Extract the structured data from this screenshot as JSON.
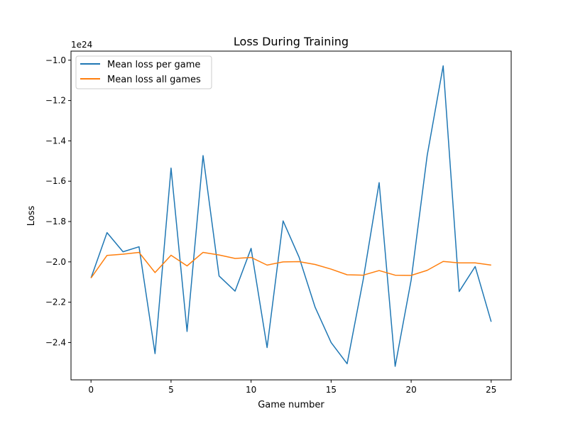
{
  "chart_data": {
    "type": "line",
    "title": "Loss During Training",
    "xlabel": "Game number",
    "ylabel": "Loss",
    "y_offset_label": "1e24",
    "xlim": [
      -1.25,
      26.25
    ],
    "ylim": [
      -2.585,
      -0.955
    ],
    "xticks": [
      0,
      5,
      10,
      15,
      20,
      25
    ],
    "xtick_labels": [
      "0",
      "5",
      "10",
      "15",
      "20",
      "25"
    ],
    "yticks": [
      -2.4,
      -2.2,
      -2.0,
      -1.8,
      -1.6,
      -1.4,
      -1.2,
      -1.0
    ],
    "ytick_labels": [
      "−2.4",
      "−2.2",
      "−2.0",
      "−1.8",
      "−1.6",
      "−1.4",
      "−1.2",
      "−1.0"
    ],
    "grid": false,
    "legend_position": "upper-left",
    "x": [
      0,
      1,
      2,
      3,
      4,
      5,
      6,
      7,
      8,
      9,
      10,
      11,
      12,
      13,
      14,
      15,
      16,
      17,
      18,
      19,
      20,
      21,
      22,
      23,
      24,
      25
    ],
    "series": [
      {
        "name": "Mean loss per game",
        "color": "#1f77b4",
        "values": [
          -2.08,
          -1.855,
          -1.95,
          -1.925,
          -2.455,
          -1.535,
          -2.345,
          -1.473,
          -2.07,
          -2.145,
          -1.933,
          -2.425,
          -1.797,
          -1.977,
          -2.225,
          -2.4,
          -2.505,
          -2.09,
          -1.607,
          -2.518,
          -2.09,
          -1.473,
          -1.028,
          -2.147,
          -2.023,
          -2.297
        ]
      },
      {
        "name": "Mean loss all games",
        "color": "#ff7f0e",
        "values": [
          -2.08,
          -1.968,
          -1.962,
          -1.953,
          -2.053,
          -1.967,
          -2.02,
          -1.953,
          -1.966,
          -1.983,
          -1.978,
          -2.016,
          -2.0,
          -1.999,
          -2.013,
          -2.036,
          -2.064,
          -2.066,
          -2.043,
          -2.066,
          -2.067,
          -2.042,
          -1.998,
          -2.005,
          -2.005,
          -2.016
        ]
      }
    ]
  }
}
